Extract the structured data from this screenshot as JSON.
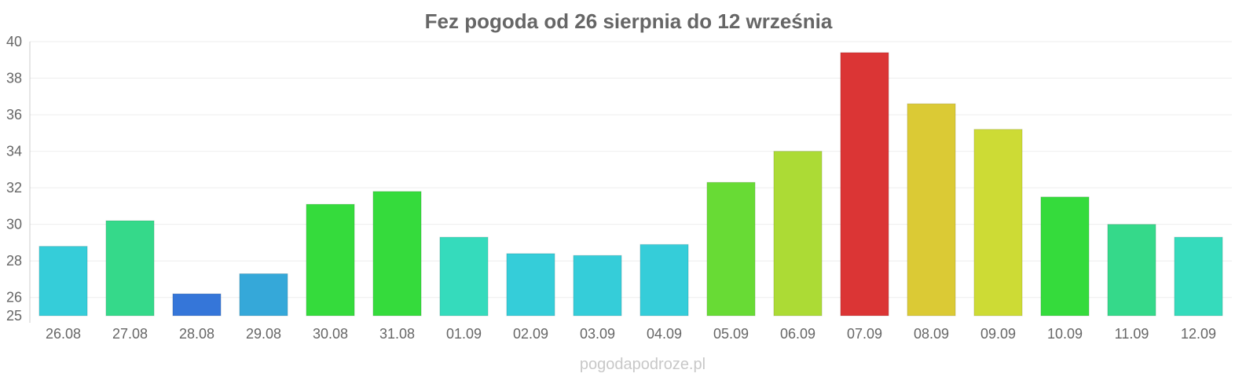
{
  "chart_data": {
    "type": "bar",
    "title": "Fez pogoda od 26 sierpnia do 12 września",
    "xlabel": "",
    "ylabel": "",
    "ylim": [
      25,
      40
    ],
    "yticks": [
      "25",
      "26",
      "28",
      "30",
      "32",
      "34",
      "36",
      "38",
      "40"
    ],
    "grid": true,
    "legend": "none",
    "categories": [
      "26.08",
      "27.08",
      "28.08",
      "29.08",
      "30.08",
      "31.08",
      "01.09",
      "02.09",
      "03.09",
      "04.09",
      "05.09",
      "06.09",
      "07.09",
      "08.09",
      "09.09",
      "10.09",
      "11.09",
      "12.09"
    ],
    "values": [
      28.8,
      30.2,
      26.2,
      27.3,
      31.1,
      31.8,
      29.3,
      28.4,
      28.3,
      28.9,
      32.3,
      34.0,
      39.4,
      36.6,
      35.2,
      31.5,
      30.0,
      29.3
    ],
    "colors": [
      "#35cdd9",
      "#35d98a",
      "#3576d9",
      "#35a8d9",
      "#35db3c",
      "#35db3c",
      "#35dbbc",
      "#35cdd9",
      "#35cdd9",
      "#35cdd9",
      "#68db35",
      "#acdb35",
      "#db3535",
      "#dbca35",
      "#cddb35",
      "#35db3c",
      "#35d98a",
      "#35dbbc"
    ]
  },
  "watermark": "pogodapodroze.pl"
}
